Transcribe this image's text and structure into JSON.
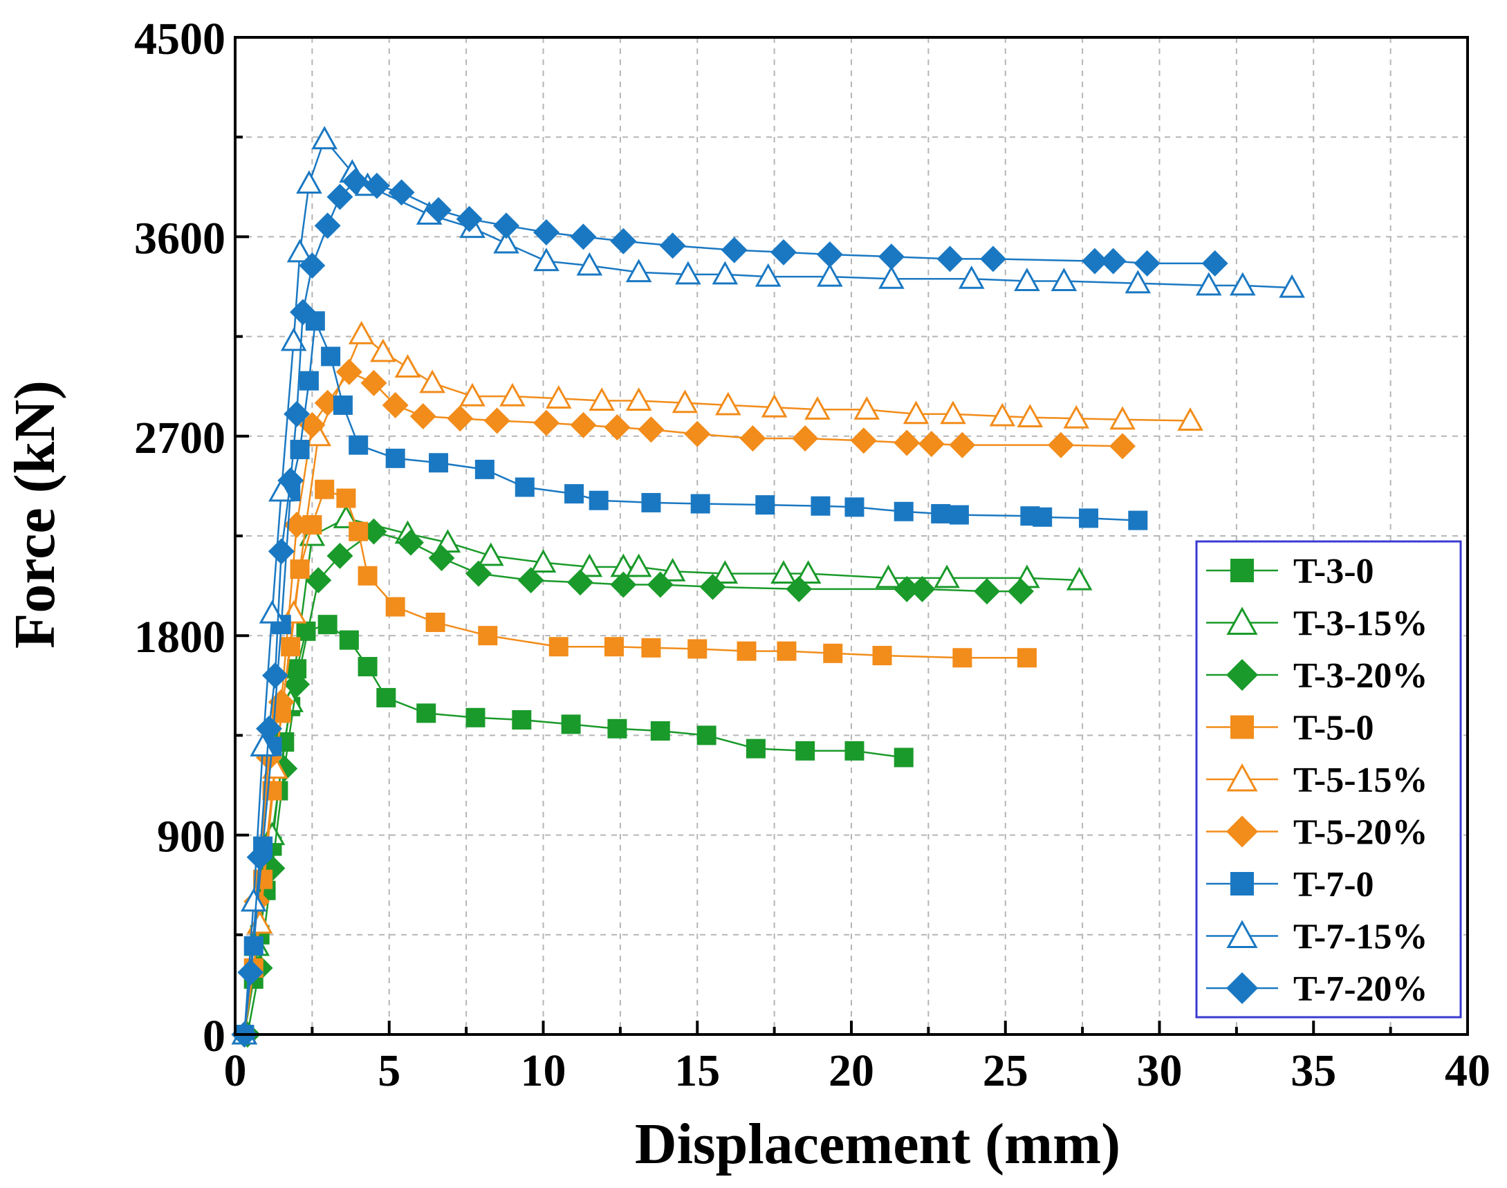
{
  "chart_data": {
    "type": "line",
    "title": "",
    "xlabel": "Displacement (mm)",
    "ylabel": "Force (kN)",
    "xlim": [
      0,
      40
    ],
    "ylim": [
      0,
      4500
    ],
    "xticks": [
      0,
      5,
      10,
      15,
      20,
      25,
      30,
      35,
      40
    ],
    "yticks": [
      0,
      900,
      1800,
      2700,
      3600,
      4500
    ],
    "grid": true,
    "legend_position": "bottom-right",
    "series": [
      {
        "name": "T-3-0",
        "color": "#1a9a2a",
        "marker": "square",
        "filled": true,
        "x": [
          0.3,
          0.6,
          0.8,
          1.0,
          1.2,
          1.4,
          1.6,
          1.8,
          2.0,
          2.3,
          3.0,
          3.7,
          4.3,
          4.9,
          6.2,
          7.8,
          9.3,
          10.9,
          12.4,
          13.8,
          15.3,
          16.9,
          18.5,
          20.1,
          21.7
        ],
        "y": [
          0,
          250,
          450,
          650,
          850,
          1100,
          1320,
          1480,
          1650,
          1820,
          1850,
          1780,
          1660,
          1520,
          1450,
          1430,
          1420,
          1400,
          1380,
          1370,
          1350,
          1290,
          1280,
          1280,
          1250
        ]
      },
      {
        "name": "T-3-15%",
        "color": "#1a9a2a",
        "marker": "triangle",
        "filled": false,
        "x": [
          0.3,
          0.7,
          1.2,
          1.8,
          2.5,
          3.6,
          5.6,
          6.9,
          8.3,
          10.0,
          11.5,
          12.6,
          13.1,
          14.2,
          15.9,
          17.8,
          18.6,
          21.2,
          23.1,
          25.7,
          27.4
        ],
        "y": [
          0,
          400,
          900,
          1500,
          2250,
          2330,
          2260,
          2220,
          2160,
          2130,
          2110,
          2110,
          2110,
          2090,
          2080,
          2080,
          2080,
          2060,
          2060,
          2060,
          2050
        ]
      },
      {
        "name": "T-3-20%",
        "color": "#1a9a2a",
        "marker": "diamond",
        "filled": true,
        "x": [
          0.4,
          0.8,
          1.2,
          1.6,
          2.0,
          2.7,
          3.4,
          4.5,
          5.7,
          6.7,
          7.9,
          9.6,
          11.2,
          12.6,
          13.8,
          15.5,
          18.3,
          21.8,
          22.3,
          24.4,
          25.5
        ],
        "y": [
          0,
          300,
          750,
          1200,
          1580,
          2050,
          2160,
          2270,
          2220,
          2150,
          2080,
          2050,
          2040,
          2030,
          2030,
          2020,
          2010,
          2010,
          2010,
          2000,
          2000
        ]
      },
      {
        "name": "T-5-0",
        "color": "#f28c1a",
        "marker": "square",
        "filled": true,
        "x": [
          0.3,
          0.6,
          0.9,
          1.2,
          1.5,
          1.8,
          2.1,
          2.5,
          2.9,
          3.6,
          4.0,
          4.3,
          5.2,
          6.5,
          8.2,
          10.5,
          12.3,
          13.5,
          15.0,
          16.6,
          17.9,
          19.4,
          21.0,
          23.6,
          25.7
        ],
        "y": [
          0,
          300,
          700,
          1100,
          1450,
          1750,
          2100,
          2300,
          2460,
          2420,
          2270,
          2070,
          1930,
          1860,
          1800,
          1750,
          1750,
          1745,
          1740,
          1730,
          1730,
          1720,
          1710,
          1700,
          1700
        ]
      },
      {
        "name": "T-5-15%",
        "color": "#f28c1a",
        "marker": "triangle",
        "filled": false,
        "x": [
          0.3,
          0.8,
          1.3,
          1.9,
          2.7,
          4.1,
          4.8,
          5.6,
          6.4,
          7.7,
          9.0,
          10.5,
          11.9,
          13.1,
          14.6,
          16.0,
          17.5,
          18.9,
          20.5,
          22.1,
          23.3,
          24.9,
          25.8,
          27.3,
          28.8,
          31.0
        ],
        "y": [
          0,
          500,
          1200,
          1900,
          2700,
          3160,
          3080,
          3010,
          2940,
          2880,
          2880,
          2870,
          2860,
          2860,
          2850,
          2840,
          2830,
          2820,
          2820,
          2800,
          2800,
          2790,
          2785,
          2780,
          2775,
          2770
        ]
      },
      {
        "name": "T-5-20%",
        "color": "#f28c1a",
        "marker": "diamond",
        "filled": true,
        "x": [
          0.3,
          0.7,
          1.1,
          1.5,
          2.0,
          2.5,
          3.0,
          3.7,
          4.5,
          5.2,
          6.1,
          7.3,
          8.5,
          10.1,
          11.3,
          12.4,
          13.5,
          15.0,
          16.8,
          18.5,
          20.4,
          21.8,
          22.6,
          23.6,
          26.8,
          28.8
        ],
        "y": [
          0,
          600,
          1250,
          1500,
          2300,
          2750,
          2850,
          2990,
          2940,
          2840,
          2790,
          2780,
          2770,
          2760,
          2750,
          2740,
          2730,
          2710,
          2690,
          2690,
          2680,
          2670,
          2665,
          2660,
          2660,
          2655
        ]
      },
      {
        "name": "T-7-0",
        "color": "#1a78c2",
        "marker": "square",
        "filled": true,
        "x": [
          0.3,
          0.6,
          0.9,
          1.2,
          1.5,
          1.8,
          2.1,
          2.4,
          2.6,
          3.1,
          3.5,
          4.0,
          5.2,
          6.6,
          8.1,
          9.4,
          11.0,
          11.8,
          13.5,
          15.1,
          17.2,
          19.0,
          20.1,
          21.7,
          22.9,
          23.5,
          25.8,
          26.2,
          27.7,
          29.3
        ],
        "y": [
          0,
          400,
          850,
          1300,
          1850,
          2450,
          2640,
          2950,
          3220,
          3060,
          2840,
          2660,
          2600,
          2580,
          2550,
          2470,
          2440,
          2410,
          2400,
          2395,
          2390,
          2385,
          2380,
          2360,
          2350,
          2345,
          2340,
          2335,
          2330,
          2320
        ]
      },
      {
        "name": "T-7-15%",
        "color": "#1a78c2",
        "marker": "triangle",
        "filled": false,
        "x": [
          0.3,
          0.6,
          0.9,
          1.2,
          1.5,
          1.9,
          2.1,
          2.4,
          2.9,
          3.8,
          4.3,
          6.3,
          7.7,
          8.8,
          10.1,
          11.5,
          13.1,
          14.7,
          15.9,
          17.3,
          19.3,
          21.3,
          23.9,
          25.7,
          26.9,
          29.3,
          31.6,
          32.7,
          34.3
        ],
        "y": [
          0,
          600,
          1300,
          1900,
          2450,
          3130,
          3530,
          3840,
          4040,
          3890,
          3830,
          3700,
          3640,
          3570,
          3490,
          3470,
          3440,
          3430,
          3430,
          3420,
          3420,
          3410,
          3410,
          3400,
          3400,
          3390,
          3380,
          3380,
          3370
        ]
      },
      {
        "name": "T-7-20%",
        "color": "#1a78c2",
        "marker": "diamond",
        "filled": true,
        "x": [
          0.3,
          0.5,
          0.8,
          1.1,
          1.3,
          1.5,
          1.8,
          2.0,
          2.2,
          2.5,
          3.0,
          3.4,
          3.9,
          4.6,
          5.4,
          6.6,
          7.6,
          8.8,
          10.1,
          11.3,
          12.6,
          14.2,
          16.2,
          17.8,
          19.3,
          21.3,
          23.2,
          24.6,
          27.9,
          28.5,
          29.6,
          31.8
        ],
        "y": [
          0,
          280,
          800,
          1380,
          1620,
          2180,
          2500,
          2800,
          3260,
          3470,
          3650,
          3780,
          3850,
          3830,
          3800,
          3720,
          3680,
          3650,
          3620,
          3600,
          3580,
          3560,
          3540,
          3530,
          3520,
          3510,
          3500,
          3500,
          3490,
          3490,
          3480,
          3480
        ]
      }
    ]
  }
}
